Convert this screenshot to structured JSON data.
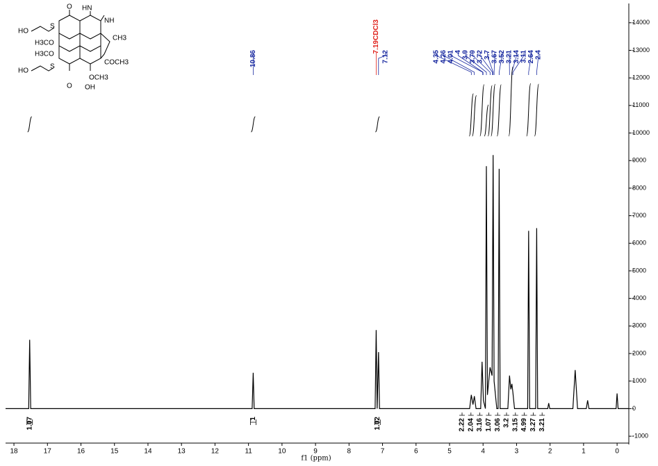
{
  "chart_data": {
    "type": "nmr",
    "x_label": "f1 (ppm)",
    "xlim": [
      18.25,
      -0.35
    ],
    "xticks": [
      18,
      17,
      16,
      15,
      14,
      13,
      12,
      11,
      10,
      9,
      8,
      7,
      6,
      5,
      4,
      3,
      2,
      1,
      0
    ],
    "ylim": [
      -1300,
      14700
    ],
    "yticks": [
      -1000,
      0,
      1000,
      2000,
      3000,
      4000,
      5000,
      6000,
      7000,
      8000,
      9000,
      10000,
      11000,
      12000,
      13000,
      14000
    ],
    "color": "#000000",
    "series": [
      {
        "x": [
          18.25,
          17.56,
          17.53,
          17.5,
          10.89,
          10.86,
          10.83,
          7.22,
          7.19,
          7.16,
          7.12,
          7.09,
          4.4,
          4.35,
          4.3,
          4.26,
          4.21,
          4.07,
          4.03,
          3.99,
          3.93,
          3.9,
          3.87,
          3.79,
          3.73,
          3.7,
          3.67,
          3.59,
          3.55,
          3.52,
          3.49,
          3.26,
          3.21,
          3.17,
          3.14,
          3.11,
          3.06,
          2.67,
          2.64,
          2.61,
          2.43,
          2.4,
          2.37,
          2.07,
          2.04,
          2.01,
          1.32,
          1.25,
          1.18,
          0.92,
          0.88,
          0.84,
          0.03,
          0.0,
          -0.03,
          -0.35
        ],
        "values": [
          0,
          0,
          2500,
          0,
          0,
          1300,
          0,
          0,
          2850,
          0,
          2050,
          0,
          0,
          500,
          150,
          450,
          0,
          0,
          1700,
          300,
          0,
          8800,
          500,
          1500,
          1200,
          9200,
          1000,
          0,
          0,
          8700,
          0,
          0,
          1200,
          700,
          900,
          600,
          0,
          0,
          6450,
          0,
          0,
          6550,
          0,
          0,
          200,
          0,
          0,
          1400,
          0,
          0,
          300,
          0,
          0,
          550,
          0,
          0
        ]
      }
    ],
    "peak_labels": [
      10.86,
      7.19,
      7.12,
      4.35,
      4.26,
      4.01,
      4.0,
      3.9,
      3.79,
      3.72,
      3.7,
      3.67,
      3.52,
      3.21,
      3.14,
      3.11,
      2.64,
      2.4
    ],
    "solvent_label": "CDCl3",
    "integrals": [
      {
        "x": 17.53,
        "value": 1.07
      },
      {
        "x": 10.86,
        "value": 1.0
      },
      {
        "x": 7.15,
        "value": 1.02
      },
      {
        "x": 4.35,
        "value": 2.22
      },
      {
        "x": 4.26,
        "value": 2.04
      },
      {
        "x": 4.03,
        "value": 3.16
      },
      {
        "x": 3.9,
        "value": 1.07
      },
      {
        "x": 3.79,
        "value": 3.06
      },
      {
        "x": 3.7,
        "value": 3.2
      },
      {
        "x": 3.52,
        "value": 3.15
      },
      {
        "x": 3.17,
        "value": 4.99
      },
      {
        "x": 2.64,
        "value": 3.27
      },
      {
        "x": 2.4,
        "value": 3.21
      }
    ],
    "structure_labels": [
      "HO",
      "S",
      "O",
      "HN",
      "NH",
      "H3CO",
      "CH3",
      "H3CO",
      "COCH3",
      "HO",
      "S",
      "OCH3",
      "O",
      "OH"
    ]
  }
}
